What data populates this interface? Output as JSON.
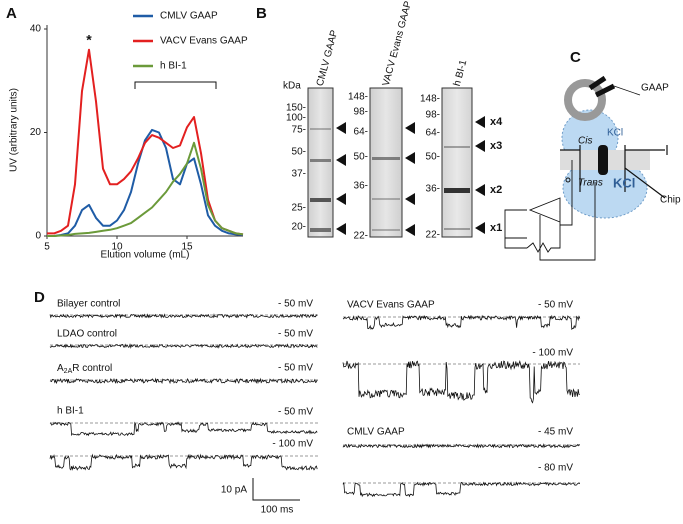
{
  "panels": {
    "a": "A",
    "b": "B",
    "c": "C",
    "d": "D"
  },
  "chart_data": {
    "type": "line",
    "ylabel": "UV (arbitrary units)",
    "xlabel": "Elution volume (mL)",
    "annotation": "*",
    "x": [
      5,
      5.5,
      6,
      6.5,
      7,
      7.5,
      8,
      8.5,
      9,
      9.5,
      10,
      10.5,
      11,
      11.5,
      12,
      12.5,
      13,
      13.5,
      14,
      14.5,
      15,
      15.5,
      16,
      16.5,
      17,
      17.5,
      18,
      18.5,
      19
    ],
    "series": [
      {
        "name": "CMLV GAAP",
        "color": "#1f5ca6",
        "values": [
          0,
          0,
          0.2,
          0.5,
          2,
          5,
          6,
          3.5,
          2,
          2,
          3,
          5,
          8.5,
          14,
          18.5,
          20.5,
          20,
          17,
          11,
          10,
          14,
          15,
          10,
          4,
          2,
          1,
          0.5,
          0.3,
          0.2
        ]
      },
      {
        "name": "VACV Evans GAAP",
        "color": "#e32020",
        "values": [
          0.5,
          0.5,
          1,
          2,
          10,
          28,
          36,
          26,
          13,
          10,
          10,
          11,
          12.5,
          15,
          18,
          19.5,
          19,
          18,
          17,
          17.5,
          21,
          23,
          16,
          7,
          3,
          1.5,
          1,
          0.5,
          0.3
        ]
      },
      {
        "name": "h BI-1",
        "color": "#6b9a3a",
        "values": [
          0,
          0,
          0.1,
          0.2,
          0.4,
          0.5,
          0.6,
          0.8,
          1,
          1.2,
          1.5,
          2,
          2.5,
          3.5,
          4.5,
          5.5,
          7,
          8.5,
          10.5,
          12,
          14,
          18,
          13,
          6,
          3,
          1.5,
          1,
          0.5,
          0.3
        ]
      }
    ],
    "xlim": [
      5,
      19
    ],
    "xticks": [
      5,
      10,
      15
    ],
    "ylim": [
      0,
      40
    ],
    "yticks": [
      0,
      20,
      40
    ]
  },
  "gel": {
    "kda": "kDa",
    "lanes": [
      "CMLV GAAP",
      "VACV Evans GAAP",
      "h BI-1"
    ],
    "markers1": [
      "150-",
      "100-",
      "75-",
      "50-",
      "37-",
      "25-",
      "20-"
    ],
    "markers2": [
      "148-",
      "98-",
      "64-",
      "50-",
      "36-",
      "22-"
    ],
    "markers3": [
      "148-",
      "98-",
      "64-",
      "50-",
      "36-",
      "22-"
    ],
    "bands": [
      "x4",
      "x3",
      "x2",
      "x1"
    ]
  },
  "diagram": {
    "gaap": "GAAP",
    "kcl_cis": "KCl",
    "cis": "Cis",
    "trans": "Trans",
    "kcl_trans": "KCl",
    "chip": "Chip"
  },
  "traces": {
    "bilayer": "Bilayer control",
    "ldao": "LDAO control",
    "a2ar": {
      "base": "A",
      "sub": "2A",
      "rest": "R control"
    },
    "hbi1": "h BI-1",
    "vacv": "VACV Evans GAAP",
    "cmlv": "CMLV GAAP",
    "v_bilayer": "- 50 mV",
    "v_ldao": "- 50 mV",
    "v_a2ar": "- 50 mV",
    "v_hbi1_1": "- 50 mV",
    "v_hbi1_2": "- 100 mV",
    "v_vacv_1": "- 50 mV",
    "v_vacv_2": "- 100 mV",
    "v_cmlv_1": "- 45 mV",
    "v_cmlv_2": "- 80 mV",
    "scale_pa": "10 pA",
    "scale_ms": "100 ms"
  }
}
